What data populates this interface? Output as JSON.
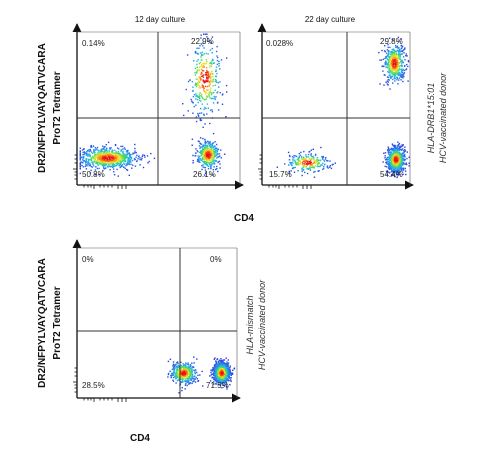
{
  "chart_data": [
    {
      "type": "scatter",
      "title": "12 day culture",
      "xlabel": "CD4",
      "ylabel": [
        "DR2/NFPYLVAYQATVCARA",
        "ProT2 Tetramer"
      ],
      "annotation": [
        "HLA-DRB1*15:01",
        "HCV-vaccinated donor"
      ],
      "grid": false,
      "quadrants": {
        "top_left": "0.14%",
        "top_right": "22.9%",
        "bottom_left": "50.8%",
        "bottom_right": "26.1%"
      },
      "populations": [
        {
          "cd4": 0.18,
          "tetramer": 0.18,
          "spread_cd4": 0.09,
          "spread_tetramer": 0.035,
          "weight": 0.508
        },
        {
          "cd4": 0.8,
          "tetramer": 0.2,
          "spread_cd4": 0.035,
          "spread_tetramer": 0.045,
          "weight": 0.261
        },
        {
          "cd4": 0.78,
          "tetramer": 0.7,
          "spread_cd4": 0.05,
          "spread_tetramer": 0.12,
          "weight": 0.229
        }
      ]
    },
    {
      "type": "scatter",
      "title": "22 day culture",
      "xlabel": "CD4",
      "ylabel": [
        "DR2/NFPYLVAYQATVCARA",
        "ProT2 Tetramer"
      ],
      "grid": false,
      "quadrants": {
        "top_left": "0.028%",
        "top_right": "29.8%",
        "bottom_left": "15.7%",
        "bottom_right": "54.4%"
      },
      "populations": [
        {
          "cd4": 0.3,
          "tetramer": 0.15,
          "spread_cd4": 0.07,
          "spread_tetramer": 0.03,
          "weight": 0.157
        },
        {
          "cd4": 0.9,
          "tetramer": 0.17,
          "spread_cd4": 0.03,
          "spread_tetramer": 0.04,
          "weight": 0.544
        },
        {
          "cd4": 0.89,
          "tetramer": 0.8,
          "spread_cd4": 0.035,
          "spread_tetramer": 0.06,
          "weight": 0.298
        }
      ]
    },
    {
      "type": "scatter",
      "title": "",
      "xlabel": "CD4",
      "ylabel": [
        "DR2/NFPYLVAYQATVCARA",
        "ProT2 Tetramer"
      ],
      "annotation": [
        "HLA-mismatch",
        "HCV-vaccinated donor"
      ],
      "grid": false,
      "quadrants": {
        "top_left": "0%",
        "top_right": "0%",
        "bottom_left": "28.5%",
        "bottom_right": "71.5%"
      },
      "populations": [
        {
          "cd4": 0.66,
          "tetramer": 0.17,
          "spread_cd4": 0.04,
          "spread_tetramer": 0.035,
          "weight": 0.285
        },
        {
          "cd4": 0.9,
          "tetramer": 0.17,
          "spread_cd4": 0.025,
          "spread_tetramer": 0.035,
          "weight": 0.715
        }
      ]
    }
  ]
}
